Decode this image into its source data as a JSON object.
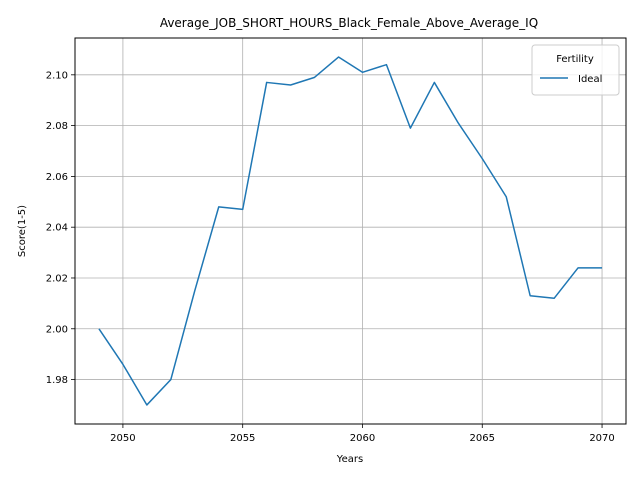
{
  "chart_data": {
    "type": "line",
    "title": "Average_JOB_SHORT_HOURS_Black_Female_Above_Average_IQ",
    "xlabel": "Years",
    "ylabel": "Score(1-5)",
    "xlim": [
      2048,
      2071
    ],
    "ylim": [
      1.9625,
      2.1145
    ],
    "xticks": [
      2050,
      2055,
      2060,
      2065,
      2070
    ],
    "yticks": [
      1.98,
      2.0,
      2.02,
      2.04,
      2.06,
      2.08,
      2.1
    ],
    "ytick_labels": [
      "1.98",
      "2.00",
      "2.02",
      "2.04",
      "2.06",
      "2.08",
      "2.10"
    ],
    "grid": true,
    "legend": {
      "title": "Fertility",
      "placement": "top-right"
    },
    "series": [
      {
        "name": "Ideal",
        "color": "#1f77b4",
        "x": [
          2049,
          2050,
          2051,
          2052,
          2053,
          2054,
          2055,
          2056,
          2057,
          2058,
          2059,
          2060,
          2061,
          2062,
          2063,
          2064,
          2065,
          2066,
          2067,
          2068,
          2069,
          2070
        ],
        "y": [
          2.0,
          1.986,
          1.97,
          1.98,
          2.015,
          2.048,
          2.047,
          2.097,
          2.096,
          2.099,
          2.107,
          2.101,
          2.104,
          2.079,
          2.097,
          2.081,
          2.067,
          2.052,
          2.013,
          2.012,
          2.024,
          2.024
        ]
      }
    ]
  }
}
